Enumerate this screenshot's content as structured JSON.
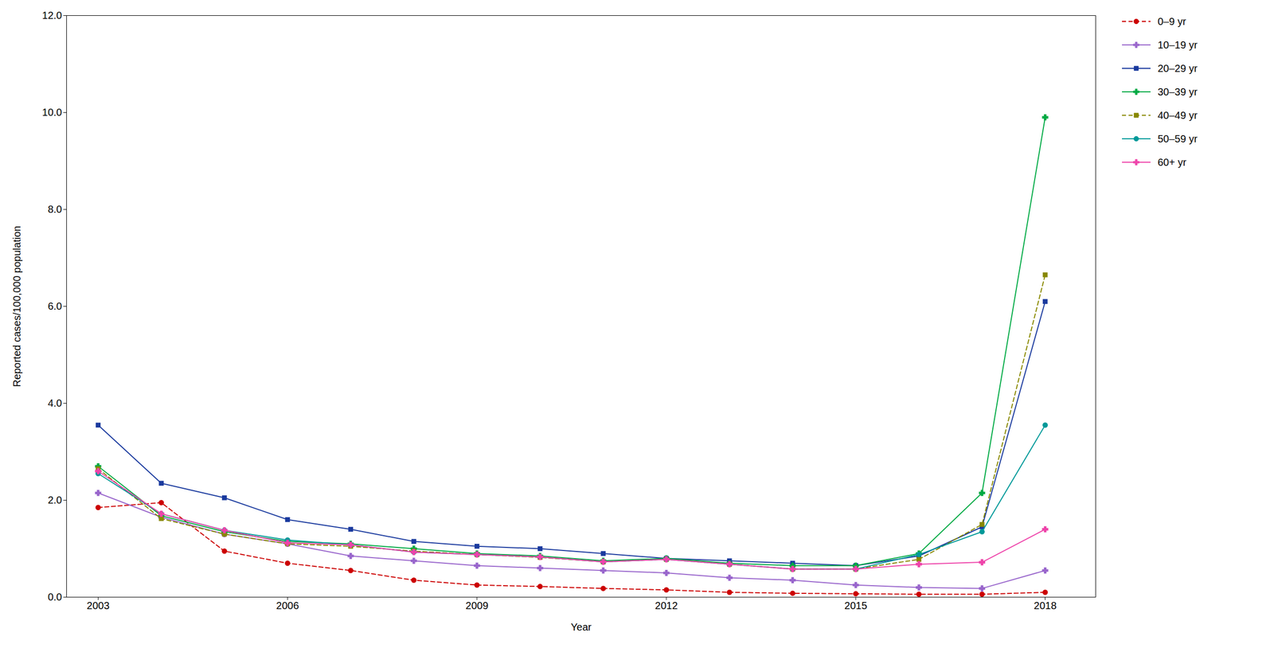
{
  "chart_data": {
    "type": "line",
    "xlabel": "Year",
    "ylabel": "Reported cases/100,000 population",
    "x": [
      2003,
      2004,
      2005,
      2006,
      2007,
      2008,
      2009,
      2010,
      2011,
      2012,
      2013,
      2014,
      2015,
      2016,
      2017,
      2018
    ],
    "series": [
      {
        "name": "0–9 yr",
        "color": "#cc0000",
        "line_style": "dashed",
        "marker": "circle",
        "values": [
          1.85,
          1.95,
          0.95,
          0.7,
          0.55,
          0.35,
          0.25,
          0.22,
          0.18,
          0.15,
          0.1,
          0.08,
          0.07,
          0.06,
          0.06,
          0.1
        ]
      },
      {
        "name": "10–19 yr",
        "color": "#9966cc",
        "line_style": "solid",
        "marker": "cross",
        "values": [
          2.15,
          1.65,
          1.3,
          1.1,
          0.85,
          0.75,
          0.65,
          0.6,
          0.55,
          0.5,
          0.4,
          0.35,
          0.25,
          0.2,
          0.18,
          0.55
        ]
      },
      {
        "name": "20–29 yr",
        "color": "#1a3a9e",
        "line_style": "solid",
        "marker": "square",
        "values": [
          3.55,
          2.35,
          2.05,
          1.6,
          1.4,
          1.15,
          1.05,
          1.0,
          0.9,
          0.8,
          0.75,
          0.7,
          0.65,
          0.85,
          1.45,
          6.1
        ]
      },
      {
        "name": "30–39 yr",
        "color": "#00aa44",
        "line_style": "solid",
        "marker": "cross",
        "values": [
          2.7,
          1.68,
          1.35,
          1.15,
          1.1,
          1.0,
          0.9,
          0.85,
          0.75,
          0.8,
          0.7,
          0.65,
          0.65,
          0.9,
          2.15,
          9.9
        ]
      },
      {
        "name": "40–49 yr",
        "color": "#888800",
        "line_style": "dashed",
        "marker": "square",
        "values": [
          2.65,
          1.62,
          1.3,
          1.1,
          1.05,
          0.95,
          0.88,
          0.82,
          0.73,
          0.78,
          0.68,
          0.58,
          0.58,
          0.78,
          1.5,
          6.65
        ]
      },
      {
        "name": "50–59 yr",
        "color": "#009999",
        "line_style": "solid",
        "marker": "circle",
        "values": [
          2.55,
          1.72,
          1.38,
          1.18,
          1.08,
          0.93,
          0.88,
          0.83,
          0.73,
          0.78,
          0.68,
          0.58,
          0.58,
          0.88,
          1.35,
          3.55
        ]
      },
      {
        "name": "60+ yr",
        "color": "#ee44aa",
        "line_style": "solid",
        "marker": "cross",
        "values": [
          2.6,
          1.72,
          1.38,
          1.12,
          1.08,
          0.93,
          0.88,
          0.83,
          0.73,
          0.78,
          0.68,
          0.58,
          0.58,
          0.68,
          0.72,
          1.4
        ]
      }
    ],
    "xlim": [
      2002.5,
      2018.8
    ],
    "xticks": [
      2003,
      2006,
      2009,
      2012,
      2015,
      2018
    ],
    "ylim": [
      0,
      12
    ],
    "yticks": [
      {
        "value": 0,
        "label": "0.0"
      },
      {
        "value": 2,
        "label": "2.0"
      },
      {
        "value": 4,
        "label": "4.0"
      },
      {
        "value": 6,
        "label": "6.0"
      },
      {
        "value": 8,
        "label": "8.0"
      },
      {
        "value": 10,
        "label": "10.0"
      },
      {
        "value": 12,
        "label": "12.0"
      }
    ],
    "grid": false,
    "legend": "right"
  }
}
